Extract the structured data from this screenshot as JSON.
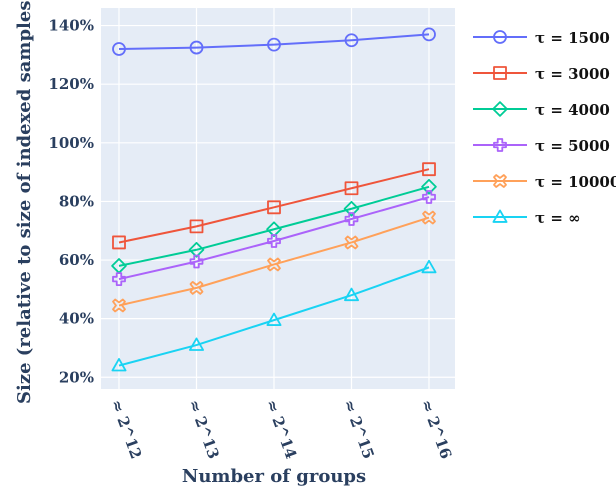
{
  "chart_data": {
    "type": "line",
    "xlabel": "Number of groups",
    "ylabel": "Size (relative to size of indexed samples)",
    "x": [
      "≈ 2^12",
      "≈ 2^13",
      "≈ 2^14",
      "≈ 2^15",
      "≈ 2^16"
    ],
    "x_exponents": [
      12,
      13,
      14,
      15,
      16
    ],
    "x_values": [
      4096,
      8192,
      16384,
      32768,
      65536
    ],
    "y_ticks": [
      "20%",
      "40%",
      "60%",
      "80%",
      "100%",
      "120%",
      "140%"
    ],
    "ylim": [
      16,
      146
    ],
    "grid": true,
    "legend_position": "right",
    "series": [
      {
        "name": "τ = 1500",
        "marker": "circle",
        "color": "#636efa",
        "values": [
          132,
          132.5,
          133.5,
          135,
          137
        ]
      },
      {
        "name": "τ = 3000",
        "marker": "square",
        "color": "#ef553b",
        "values": [
          66,
          71.5,
          78,
          84.5,
          91
        ]
      },
      {
        "name": "τ = 4000",
        "marker": "diamond",
        "color": "#00cc96",
        "values": [
          58,
          63.5,
          70.5,
          77.5,
          85
        ]
      },
      {
        "name": "τ = 5000",
        "marker": "cross",
        "color": "#ab63fa",
        "values": [
          53.5,
          59.5,
          66.5,
          74,
          81.5
        ]
      },
      {
        "name": "τ = 10000",
        "marker": "x",
        "color": "#ffa15a",
        "values": [
          44.5,
          50.5,
          58.5,
          66,
          74.5
        ]
      },
      {
        "name": "τ = ∞",
        "marker": "triangle-up",
        "color": "#19d3f3",
        "values": [
          24,
          31,
          39.5,
          48,
          57.5
        ]
      }
    ]
  }
}
